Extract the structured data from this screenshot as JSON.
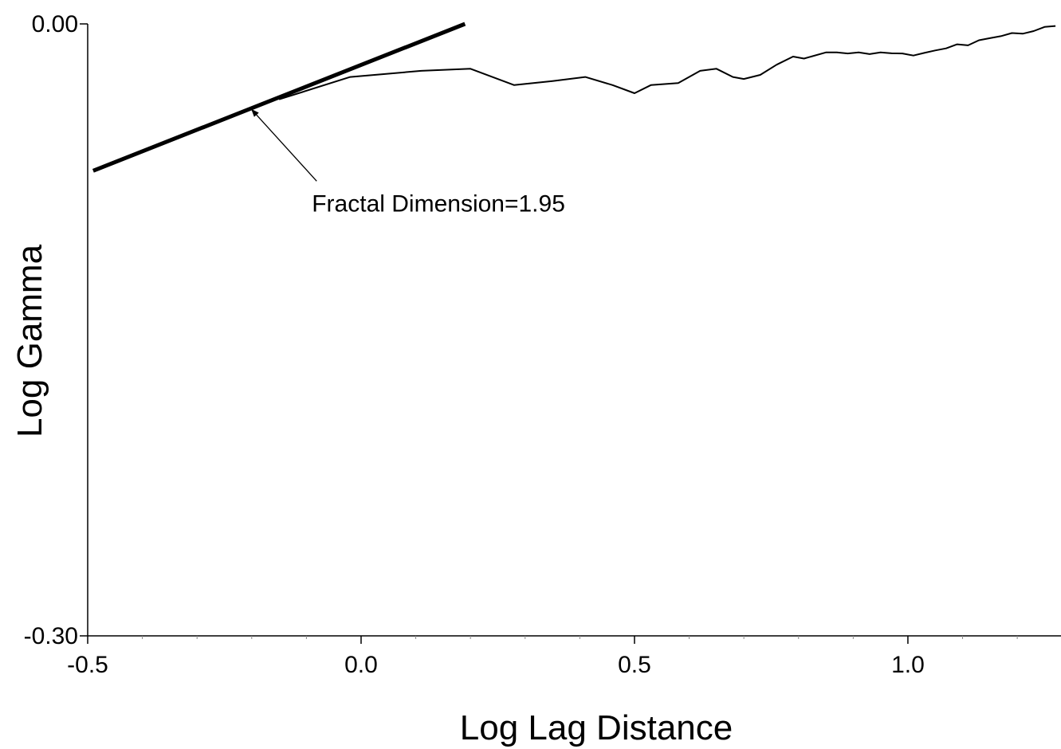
{
  "chart_data": {
    "type": "line",
    "title": "",
    "xlabel": "Log Lag Distance",
    "ylabel": "Log Gamma",
    "xlim": [
      -0.5,
      1.28
    ],
    "ylim": [
      -0.3,
      0.0
    ],
    "grid": false,
    "x_ticks": [
      {
        "value": -0.5,
        "label": "-0.5"
      },
      {
        "value": 0.0,
        "label": "0.0"
      },
      {
        "value": 0.5,
        "label": "0.5"
      },
      {
        "value": 1.0,
        "label": "1.0"
      }
    ],
    "y_ticks": [
      {
        "value": 0.0,
        "label": "0.00"
      },
      {
        "value": -0.3,
        "label": "-0.30"
      }
    ],
    "series": [
      {
        "x": [
          -0.15,
          -0.02,
          0.11,
          0.2,
          0.28,
          0.35,
          0.41,
          0.46,
          0.5,
          0.53,
          0.58,
          0.62,
          0.65,
          0.68,
          0.7,
          0.73,
          0.76,
          0.79,
          0.81,
          0.85,
          0.87,
          0.89,
          0.91,
          0.93,
          0.95,
          0.97,
          0.99,
          1.01,
          1.03,
          1.05,
          1.07,
          1.09,
          1.11,
          1.13,
          1.15,
          1.17,
          1.19,
          1.21,
          1.23,
          1.25,
          1.27
        ],
        "y": [
          -0.037,
          -0.026,
          -0.023,
          -0.022,
          -0.03,
          -0.028,
          -0.026,
          -0.03,
          -0.034,
          -0.03,
          -0.029,
          -0.023,
          -0.022,
          -0.026,
          -0.027,
          -0.025,
          -0.02,
          -0.016,
          -0.017,
          -0.014,
          -0.014,
          -0.0145,
          -0.014,
          -0.0148,
          -0.014,
          -0.0144,
          -0.0145,
          -0.0155,
          -0.0142,
          -0.013,
          -0.012,
          -0.01,
          -0.0105,
          -0.008,
          -0.007,
          -0.006,
          -0.0045,
          -0.0048,
          -0.0035,
          -0.0015,
          -0.001
        ]
      }
    ],
    "fit_line": {
      "x": [
        -0.49,
        0.19
      ],
      "y": [
        -0.072,
        0.0
      ]
    },
    "annotations": [
      {
        "text": "Fractal Dimension=1.95",
        "x": -0.09,
        "y": -0.088,
        "arrow_to": [
          -0.2,
          -0.042
        ]
      }
    ]
  }
}
